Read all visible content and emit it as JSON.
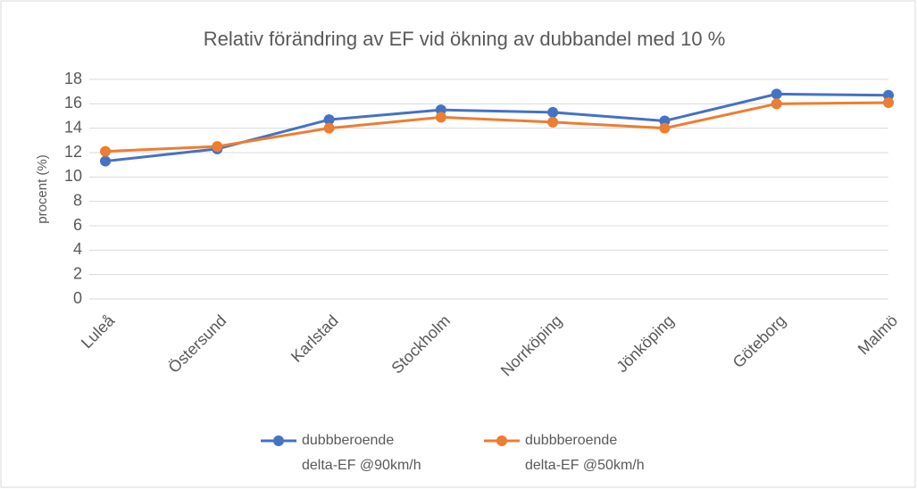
{
  "chart_data": {
    "type": "line",
    "title": "Relativ förändring av EF vid ökning av dubbandel med 10 %",
    "y_label": "procent (%)",
    "categories": [
      "Luleå",
      "Östersund",
      "Karlstad",
      "Stockholm",
      "Norrköping",
      "Jönköping",
      "Göteborg",
      "Malmö"
    ],
    "series": [
      {
        "name": "dubbberoende delta-EF @90km/h",
        "color": "#4472c4",
        "values": [
          11.3,
          12.3,
          14.7,
          15.5,
          15.3,
          14.6,
          16.8,
          16.7
        ]
      },
      {
        "name": "dubbberoende delta-EF @50km/h",
        "color": "#ed7d31",
        "values": [
          12.1,
          12.5,
          14.0,
          14.9,
          14.5,
          14.0,
          16.0,
          16.1
        ]
      }
    ],
    "ylim": [
      0,
      18
    ],
    "yticks": [
      0,
      2,
      4,
      6,
      8,
      10,
      12,
      14,
      16,
      18
    ],
    "grid": true,
    "legend": "bottom"
  }
}
